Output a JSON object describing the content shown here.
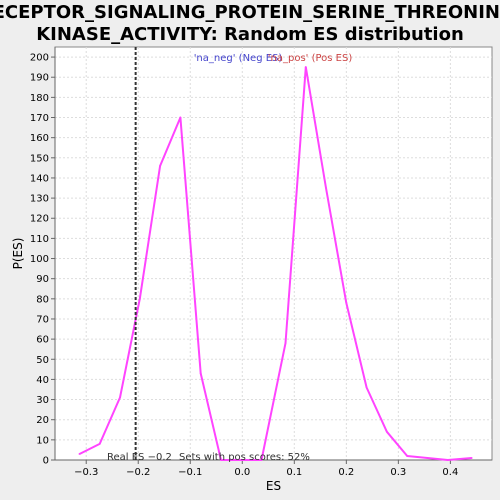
{
  "chart_data": {
    "type": "line",
    "title_line1": "RECEPTOR_SIGNALING_PROTEIN_SERINE_THREONINE_",
    "title_line2": "KINASE_ACTIVITY: Random ES distribution",
    "xlabel": "ES",
    "ylabel": "P(ES)",
    "xlim": [
      -0.36,
      0.48
    ],
    "ylim": [
      0,
      205
    ],
    "xticks": [
      -0.3,
      -0.2,
      -0.1,
      0.0,
      0.1,
      0.2,
      0.3,
      0.4
    ],
    "xtick_labels": [
      "−0.3",
      "−0.2",
      "−0.1",
      "0.0",
      "0.1",
      "0.2",
      "0.3",
      "0.4"
    ],
    "yticks": [
      0,
      10,
      20,
      30,
      40,
      50,
      60,
      70,
      80,
      90,
      100,
      110,
      120,
      130,
      140,
      150,
      160,
      170,
      180,
      190,
      200
    ],
    "grid": true,
    "series": [
      {
        "color": "#ff44ff",
        "x": [
          -0.313,
          -0.274,
          -0.235,
          -0.197,
          -0.158,
          -0.119,
          -0.08,
          -0.041,
          -0.002,
          0.037,
          0.083,
          0.122,
          0.161,
          0.2,
          0.239,
          0.278,
          0.317,
          0.356,
          0.395,
          0.441
        ],
        "values": [
          3,
          8,
          31,
          80,
          146,
          170,
          43,
          0,
          0,
          0,
          58,
          195,
          135,
          78,
          36,
          14,
          2,
          1,
          0,
          1
        ]
      }
    ],
    "legend": {
      "placement": "top-center",
      "entries": [
        {
          "label": "'na_neg' (Neg ES)",
          "color": "#4444cc"
        },
        {
          "label": "'na_pos' (Pos ES)",
          "color": "#cc4444"
        }
      ]
    },
    "real_es": {
      "value": -0.205,
      "label": "Real ES −0.2"
    },
    "pos_scores_label": "Sets with pos scores: 52%"
  }
}
